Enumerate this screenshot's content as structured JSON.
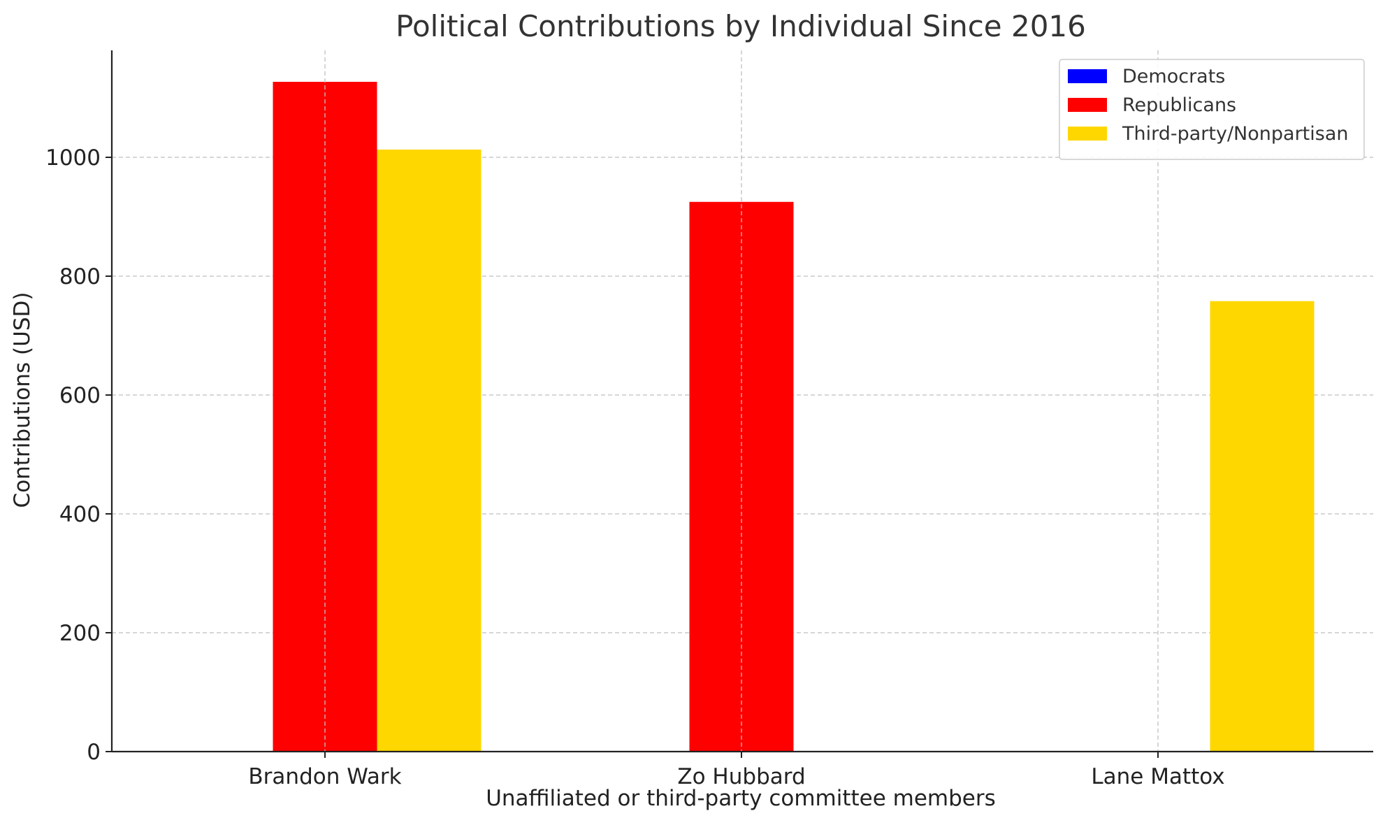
{
  "chart_data": {
    "type": "bar",
    "title": "Political Contributions by Individual Since 2016",
    "xlabel": "Unaffiliated or third-party committee members",
    "ylabel": "Contributions (USD)",
    "categories": [
      "Brandon Wark",
      "Zo Hubbard",
      "Lane Mattox"
    ],
    "series": [
      {
        "name": "Democrats",
        "color": "#0000ff",
        "values": [
          0,
          0,
          0
        ]
      },
      {
        "name": "Republicans",
        "color": "#ff0000",
        "values": [
          1127,
          925,
          0
        ]
      },
      {
        "name": "Third-party/Nonpartisan",
        "color": "#ffd700",
        "values": [
          1013,
          0,
          758
        ]
      }
    ],
    "ylim": [
      0,
      1180
    ],
    "yticks": [
      0,
      200,
      400,
      600,
      800,
      1000
    ],
    "grid": true,
    "legend_position": "top-right"
  }
}
